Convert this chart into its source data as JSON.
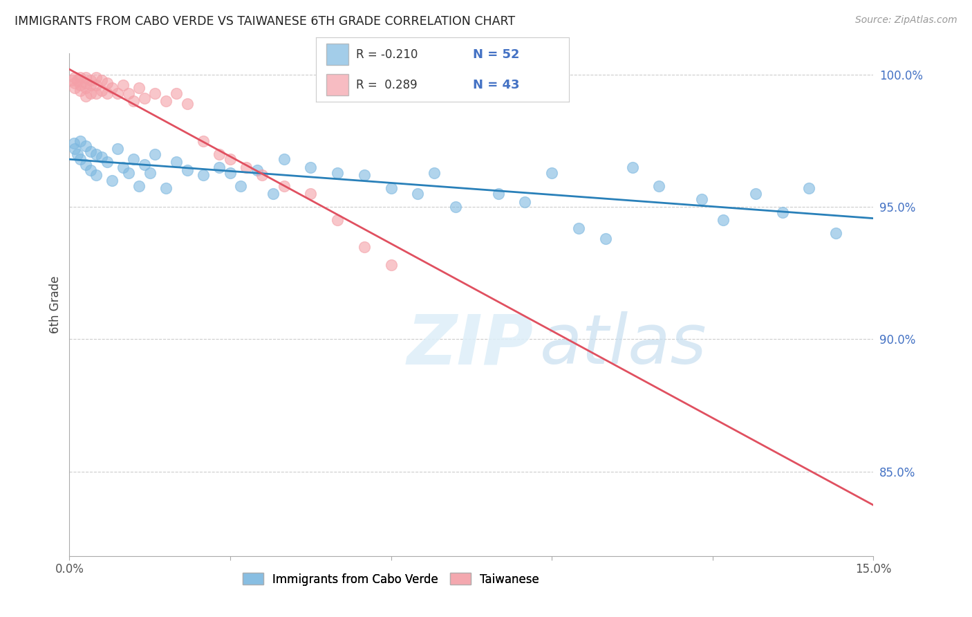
{
  "title": "IMMIGRANTS FROM CABO VERDE VS TAIWANESE 6TH GRADE CORRELATION CHART",
  "source": "Source: ZipAtlas.com",
  "ylabel": "6th Grade",
  "xlim": [
    0.0,
    0.15
  ],
  "ylim": [
    0.818,
    1.008
  ],
  "x_ticks": [
    0.0,
    0.03,
    0.06,
    0.09,
    0.12,
    0.15
  ],
  "x_tick_labels": [
    "0.0%",
    "",
    "",
    "",
    "",
    "15.0%"
  ],
  "y_ticks_right": [
    0.85,
    0.9,
    0.95,
    1.0
  ],
  "y_tick_labels_right": [
    "85.0%",
    "90.0%",
    "95.0%",
    "100.0%"
  ],
  "color_blue": "#7db8e0",
  "color_pink": "#f4a0a8",
  "trendline_blue": "#2980b9",
  "trendline_pink": "#e05060",
  "cabo_x": [
    0.0008,
    0.001,
    0.0015,
    0.002,
    0.002,
    0.003,
    0.003,
    0.004,
    0.004,
    0.005,
    0.005,
    0.006,
    0.007,
    0.008,
    0.009,
    0.01,
    0.011,
    0.012,
    0.013,
    0.014,
    0.015,
    0.016,
    0.018,
    0.02,
    0.022,
    0.025,
    0.028,
    0.03,
    0.032,
    0.035,
    0.038,
    0.04,
    0.045,
    0.05,
    0.055,
    0.06,
    0.065,
    0.068,
    0.072,
    0.08,
    0.085,
    0.09,
    0.095,
    0.1,
    0.105,
    0.11,
    0.118,
    0.122,
    0.128,
    0.133,
    0.138,
    0.143
  ],
  "cabo_y": [
    0.974,
    0.972,
    0.97,
    0.975,
    0.968,
    0.973,
    0.966,
    0.971,
    0.964,
    0.97,
    0.962,
    0.969,
    0.967,
    0.96,
    0.972,
    0.965,
    0.963,
    0.968,
    0.958,
    0.966,
    0.963,
    0.97,
    0.957,
    0.967,
    0.964,
    0.962,
    0.965,
    0.963,
    0.958,
    0.964,
    0.955,
    0.968,
    0.965,
    0.963,
    0.962,
    0.957,
    0.955,
    0.963,
    0.95,
    0.955,
    0.952,
    0.963,
    0.942,
    0.938,
    0.965,
    0.958,
    0.953,
    0.945,
    0.955,
    0.948,
    0.957,
    0.94
  ],
  "taiwan_x": [
    0.0005,
    0.001,
    0.001,
    0.001,
    0.0015,
    0.002,
    0.002,
    0.002,
    0.003,
    0.003,
    0.003,
    0.003,
    0.004,
    0.004,
    0.004,
    0.005,
    0.005,
    0.005,
    0.006,
    0.006,
    0.007,
    0.007,
    0.008,
    0.009,
    0.01,
    0.011,
    0.012,
    0.013,
    0.014,
    0.016,
    0.018,
    0.02,
    0.022,
    0.025,
    0.028,
    0.03,
    0.033,
    0.036,
    0.04,
    0.045,
    0.05,
    0.055,
    0.06
  ],
  "taiwan_y": [
    0.998,
    0.999,
    0.997,
    0.995,
    0.998,
    0.999,
    0.996,
    0.994,
    0.999,
    0.997,
    0.995,
    0.992,
    0.998,
    0.996,
    0.993,
    0.999,
    0.996,
    0.993,
    0.998,
    0.994,
    0.997,
    0.993,
    0.995,
    0.993,
    0.996,
    0.993,
    0.99,
    0.995,
    0.991,
    0.993,
    0.99,
    0.993,
    0.989,
    0.975,
    0.97,
    0.968,
    0.965,
    0.962,
    0.958,
    0.955,
    0.945,
    0.935,
    0.928
  ]
}
